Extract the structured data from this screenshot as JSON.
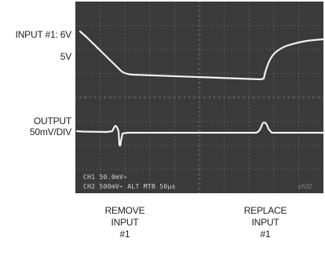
{
  "labels": {
    "input_line1": "INPUT #1: 6V",
    "input_line2": "5V",
    "output_line1": "OUTPUT",
    "output_line2": "50mV/DIV",
    "remove": [
      "REMOVE",
      "INPUT",
      "#1"
    ],
    "replace": [
      "REPLACE",
      "INPUT",
      "#1"
    ]
  },
  "scope": {
    "readout_line1": "CH1   50.0mV⌁",
    "readout_line2": "CH2   500mV⌁    ALT MTB   50µs",
    "code": "ch32",
    "screen_color": "#3a3a3a",
    "grid_color": "#6e6e6e",
    "trace_color": "#f2f2f2"
  },
  "chart_data": {
    "type": "line",
    "title": "",
    "xlabel": "",
    "ylabel": "",
    "grid_divisions": [
      10,
      8
    ],
    "timebase": "50µs",
    "channels": [
      {
        "name": "CH1",
        "scale": "50.0mV"
      },
      {
        "name": "CH2",
        "scale": "500mV"
      }
    ],
    "events": [
      "REMOVE INPUT #1",
      "REPLACE INPUT #1"
    ]
  }
}
